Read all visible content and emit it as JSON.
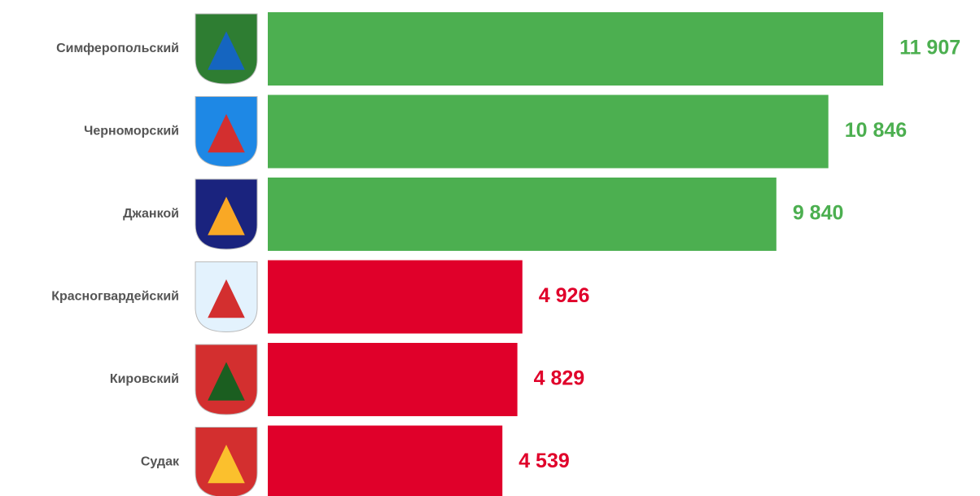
{
  "chart_data": {
    "type": "barh",
    "categories": [
      "Симферопольский",
      "Черноморский",
      "Джанкой",
      "Красногвардейский",
      "Кировский",
      "Судак"
    ],
    "values": [
      11907,
      10846,
      9840,
      4926,
      4829,
      4539
    ],
    "value_labels": [
      "11 907",
      "10 846",
      "9 840",
      "4 926",
      "4 829",
      "4 539"
    ],
    "colors": [
      "#4caf50",
      "#4caf50",
      "#4caf50",
      "#e0002a",
      "#e0002a",
      "#e0002a"
    ],
    "xlim": [
      0,
      13780
    ]
  }
}
